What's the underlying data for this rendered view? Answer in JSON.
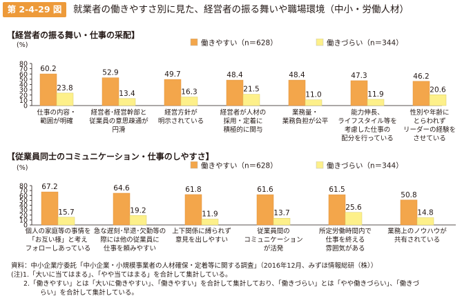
{
  "figure": {
    "number": "第 2-4-29 図",
    "title": "就業者の働きやすさ別に見た、経営者の振る舞いや職場環境（中小・労働人材）"
  },
  "chart_data": [
    {
      "type": "bar",
      "section_title": "【経営者の振る舞い・仕事の采配】",
      "ylabel": "(%)",
      "ylim": [
        0,
        80
      ],
      "yticks": [
        0,
        10,
        20,
        30,
        40,
        50,
        60,
        70,
        80
      ],
      "legend_position": "top-right",
      "categories": [
        "仕事の内容・\n範囲が明確",
        "経営者･経営幹部と\n従業員の意思疎通が\n円滑",
        "経営方針が\n明示されている",
        "経営者が人材の\n採用・定着に\n積極的に関与",
        "業務量・\n業務負担が公平",
        "能力伸長、\nライフスタイル等を\n考慮した仕事の\n配分を行っている",
        "性別や年齢に\nとらわれず\nリーダーの経験を\nさせている"
      ],
      "series": [
        {
          "name": "働きやすい（n＝628）",
          "color": "#f3a64b",
          "values": [
            60.2,
            52.9,
            49.7,
            48.4,
            48.4,
            47.3,
            46.2
          ]
        },
        {
          "name": "働きづらい（n＝344）",
          "color": "#fdf08a",
          "values": [
            23.8,
            13.4,
            16.3,
            21.5,
            11.0,
            11.9,
            20.6
          ]
        }
      ]
    },
    {
      "type": "bar",
      "section_title": "【従業員同士のコミュニケーション・仕事のしやすさ】",
      "ylabel": "(%)",
      "ylim": [
        0,
        80
      ],
      "yticks": [
        0,
        10,
        20,
        30,
        40,
        50,
        60,
        70,
        80
      ],
      "legend_position": "top-right",
      "categories": [
        "個人の家庭等の事情を\n「お互い様」と考え\nフォローしあっている",
        "急な遅刻･早退･欠勤等の\n際には他の従業員に\n仕事を頼みやすい",
        "上下関係に縛られず\n意見を出しやすい",
        "従業員間の\nコミュニケーション\nが活発",
        "所定労働時間内で\n仕事を終える\n雰囲気がある",
        "業務上のノウハウが\n共有されている"
      ],
      "series": [
        {
          "name": "働きやすい（n＝628）",
          "color": "#f3a64b",
          "values": [
            67.2,
            64.6,
            61.8,
            61.6,
            61.5,
            50.8
          ]
        },
        {
          "name": "働きづらい（n＝344）",
          "color": "#fdf08a",
          "values": [
            15.7,
            19.2,
            11.9,
            13.7,
            25.6,
            14.8
          ]
        }
      ]
    }
  ],
  "notes": {
    "source": "資料：中小企業庁委託「中小企業・小規模事業者の人材確保・定着等に関する調査」（2016年12月、みずほ情報総研（株））",
    "note1": "(注)1.「大いに当てはまる」、「やや当てはまる」を合計して集計している。",
    "note2a": "2.「働きやすい」とは「大いに働きやすい」、「働きやすい」を合計して集計しており、「働きづらい」とは「やや働きづらい」、「働きづ",
    "note2b": "らい」を合計して集計している。"
  }
}
